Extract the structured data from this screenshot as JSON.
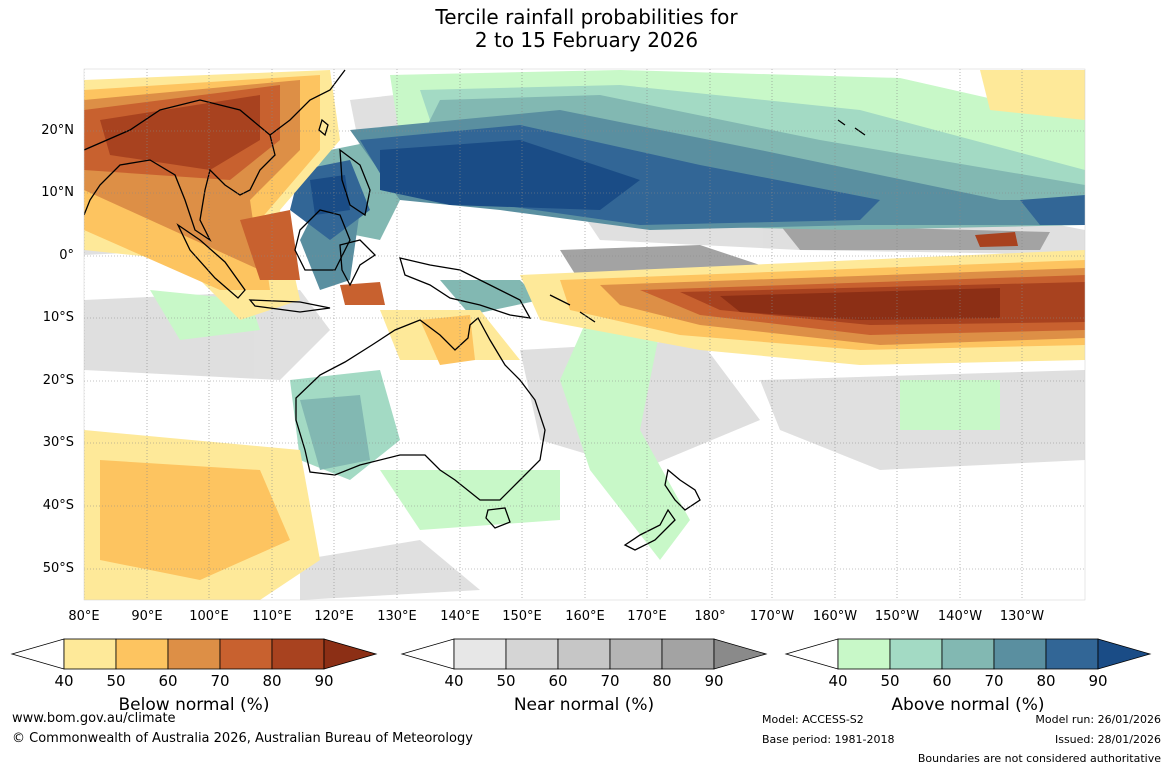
{
  "title": {
    "line1": "Tercile rainfall probabilities for",
    "line2": "2 to 15 February 2026"
  },
  "map": {
    "lat_labels": [
      "20°N",
      "10°N",
      "0°",
      "10°S",
      "20°S",
      "30°S",
      "40°S",
      "50°S"
    ],
    "lon_labels": [
      "80°E",
      "90°E",
      "100°E",
      "110°E",
      "120°E",
      "130°E",
      "140°E",
      "150°E",
      "160°E",
      "170°E",
      "180°",
      "170°W",
      "160°W",
      "150°W",
      "140°W",
      "130°W"
    ]
  },
  "legends": [
    {
      "label": "Below normal (%)",
      "ticks": [
        "40",
        "50",
        "60",
        "70",
        "80",
        "90"
      ],
      "colors": [
        "#ffffff",
        "#fee999",
        "#fdc460",
        "#dd8f46",
        "#c8612f",
        "#a8421f",
        "#8c2f15"
      ]
    },
    {
      "label": "Near normal (%)",
      "ticks": [
        "40",
        "50",
        "60",
        "70",
        "80",
        "90"
      ],
      "colors": [
        "#ffffff",
        "#e7e7e7",
        "#d5d5d5",
        "#c6c6c6",
        "#b5b5b5",
        "#a3a3a3",
        "#8a8a8a"
      ]
    },
    {
      "label": "Above normal (%)",
      "ticks": [
        "40",
        "50",
        "60",
        "70",
        "80",
        "90"
      ],
      "colors": [
        "#ffffff",
        "#c8f8c8",
        "#a3dac4",
        "#82b8b2",
        "#5a8fa0",
        "#326696",
        "#1a4c86"
      ]
    }
  ],
  "footer": {
    "url": "www.bom.gov.au/climate",
    "copyright": "© Commonwealth of Australia 2026, Australian Bureau of Meteorology",
    "model": "Model: ACCESS-S2",
    "base_period": "Base period: 1981-2018",
    "model_run": "Model run: 26/01/2026",
    "issued": "Issued: 28/01/2026",
    "boundaries": "Boundaries are not considered authoritative"
  }
}
